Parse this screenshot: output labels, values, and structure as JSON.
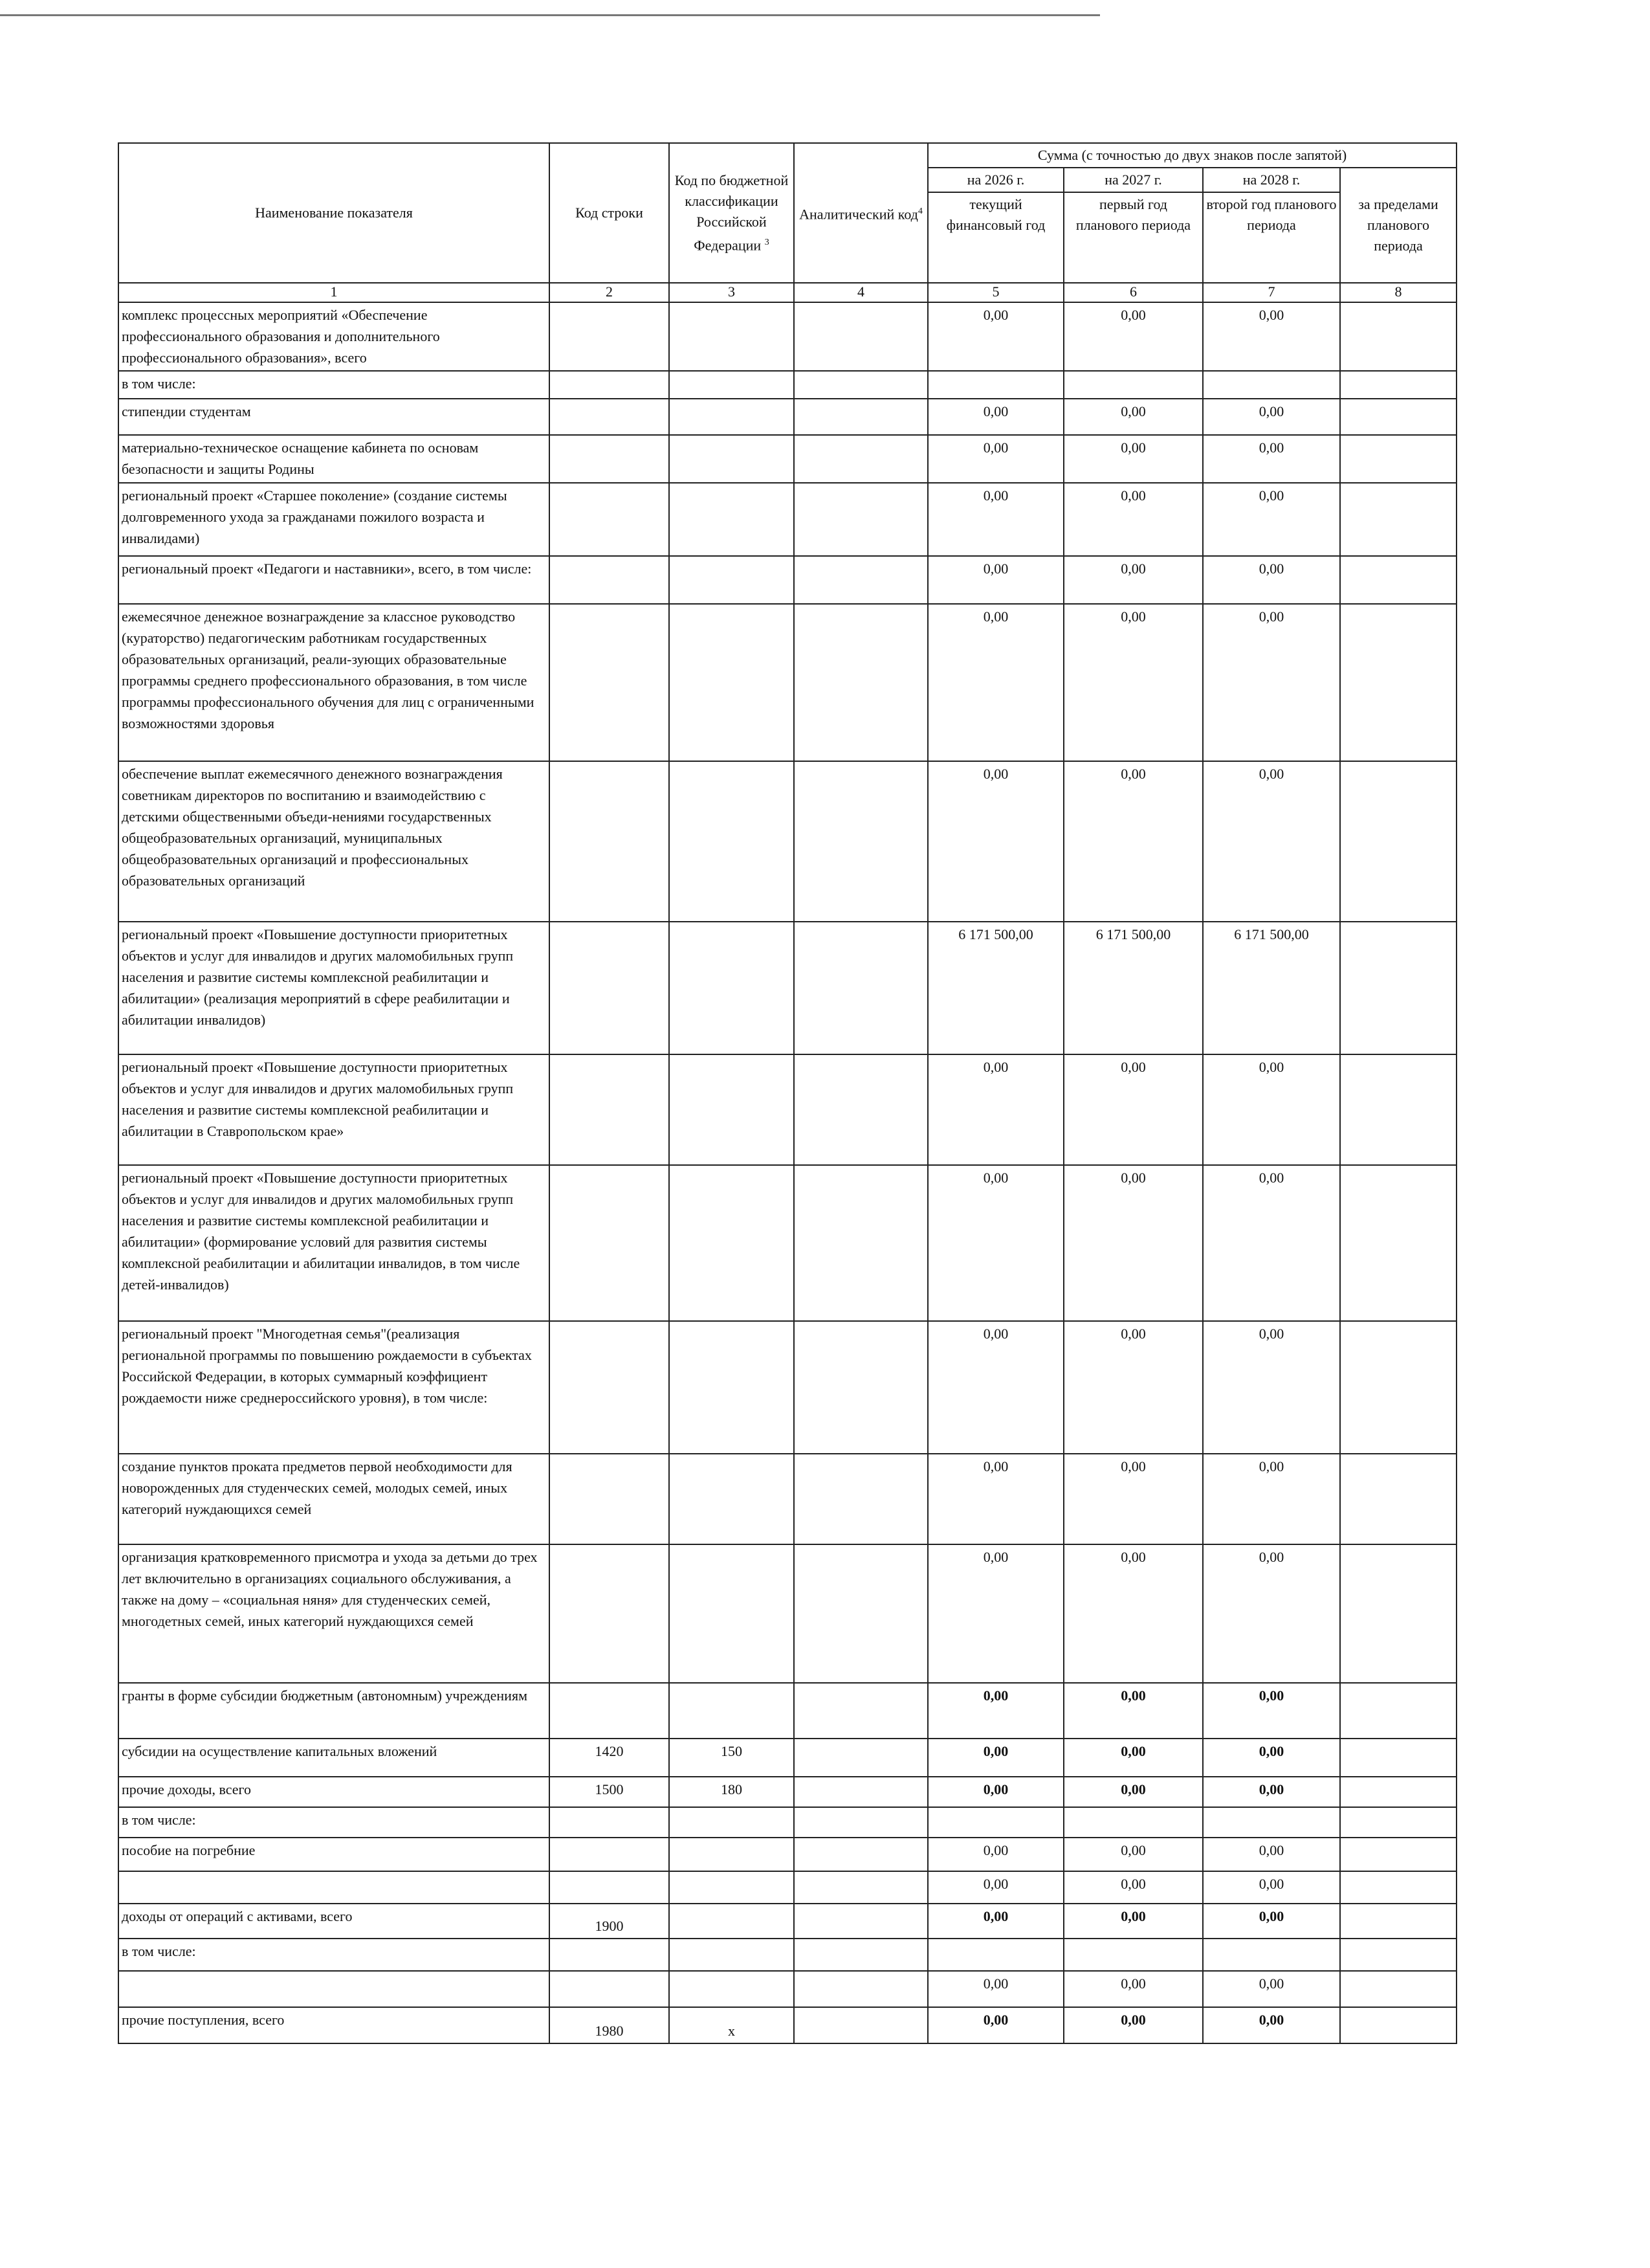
{
  "header": {
    "name": "Наименование показателя",
    "line_code": "Код строки",
    "budget_code": "Код по бюджетной классификации Российской Федерации",
    "budget_code_note": "3",
    "analytic": "Аналитический код",
    "analytic_note": "4",
    "sum": "Сумма (с точностью до двух знаков после запятой)",
    "y2026": "на 2026 г.",
    "y2027": "на 2027 г.",
    "y2028": "на 2028 г.",
    "current": "текущий финансовый год",
    "first": "первый год планового периода",
    "second": "второй год планового периода",
    "beyond": "за пределами планового периода"
  },
  "column_numbers": [
    "1",
    "2",
    "3",
    "4",
    "5",
    "6",
    "7",
    "8"
  ],
  "rows": [
    {
      "name": "комплекс процессных мероприятий «Обеспечение профессионального образования и дополнительного профессионального образования», всего",
      "line_code": "",
      "budget_code": "",
      "v": [
        "0,00",
        "0,00",
        "0,00"
      ],
      "bold": false
    },
    {
      "name": "в том числе:",
      "line_code": "",
      "budget_code": "",
      "v": [
        "",
        "",
        ""
      ],
      "bold": false
    },
    {
      "name": "стипендии студентам",
      "line_code": "",
      "budget_code": "",
      "v": [
        "0,00",
        "0,00",
        "0,00"
      ],
      "bold": false
    },
    {
      "name": "материально-техническое оснащение кабинета по основам безопасности и защиты Родины",
      "line_code": "",
      "budget_code": "",
      "v": [
        "0,00",
        "0,00",
        "0,00"
      ],
      "bold": false
    },
    {
      "name": "региональный проект «Старшее поколение» (создание системы долговременного ухода за гражданами пожилого возраста и инвалидами)",
      "line_code": "",
      "budget_code": "",
      "v": [
        "0,00",
        "0,00",
        "0,00"
      ],
      "bold": false
    },
    {
      "name": "региональный проект «Педагоги и наставники», всего, в том числе:",
      "line_code": "",
      "budget_code": "",
      "v": [
        "0,00",
        "0,00",
        "0,00"
      ],
      "bold": false
    },
    {
      "name": "ежемесячное денежное вознаграждение за классное руководство (кураторство) педагогическим работникам государственных образовательных организаций, реали-зующих образовательные программы среднего профессионального образования, в том числе программы профессионального обучения для лиц с ограниченными возможностями здоровья",
      "line_code": "",
      "budget_code": "",
      "v": [
        "0,00",
        "0,00",
        "0,00"
      ],
      "bold": false
    },
    {
      "name": "обеспечение выплат ежемесячного денежного вознаграждения советникам директоров по воспитанию и взаимодействию с детскими общественными объеди-нениями государственных общеобразовательных организаций, муниципальных общеобразовательных организаций и профессиональных образовательных организаций",
      "line_code": "",
      "budget_code": "",
      "v": [
        "0,00",
        "0,00",
        "0,00"
      ],
      "bold": false
    },
    {
      "name": "региональный проект «Повышение доступности приоритетных объектов и услуг для инвалидов и других маломобильных групп населения и развитие системы комплексной реабилитации и абилитации» (реализация мероприятий в сфере реабилитации и абилитации инвалидов)",
      "line_code": "",
      "budget_code": "",
      "v": [
        "6 171 500,00",
        "6 171 500,00",
        "6 171 500,00"
      ],
      "bold": false
    },
    {
      "name": "региональный проект «Повышение доступности приоритетных объектов и услуг для инвалидов и других маломобильных групп населения и развитие системы комплексной реабилитации и абилитации в Ставропольском крае»",
      "line_code": "",
      "budget_code": "",
      "v": [
        "0,00",
        "0,00",
        "0,00"
      ],
      "bold": false
    },
    {
      "name": "региональный проект «Повышение доступности приоритетных объектов и услуг для инвалидов и других маломобильных групп населения и развитие системы комплексной реабилитации и абилитации» (формирование условий для развития системы комплексной реабилитации и абилитации инвалидов, в том числе детей-инвалидов)",
      "line_code": "",
      "budget_code": "",
      "v": [
        "0,00",
        "0,00",
        "0,00"
      ],
      "bold": false
    },
    {
      "name": "региональный проект \"Многодетная семья\"(реализация региональной программы по повышению рождаемости в субъектах Российской Федерации, в которых суммарный коэффициент рождаемости ниже среднероссийского уровня), в том числе:",
      "line_code": "",
      "budget_code": "",
      "v": [
        "0,00",
        "0,00",
        "0,00"
      ],
      "bold": false
    },
    {
      "name": "создание пунктов проката предметов первой необходимости для новорожденных для студенческих семей, молодых семей, иных категорий нуждающихся семей",
      "line_code": "",
      "budget_code": "",
      "v": [
        "0,00",
        "0,00",
        "0,00"
      ],
      "bold": false
    },
    {
      "name": "организация кратковременного присмотра и ухода за детьми до трех лет включительно в организациях социального обслуживания, а также на дому – «социальная няня» для студенческих семей, многодетных семей, иных категорий нуждающихся семей",
      "line_code": "",
      "budget_code": "",
      "v": [
        "0,00",
        "0,00",
        "0,00"
      ],
      "bold": false
    },
    {
      "name": "гранты в форме субсидии бюджетным (автономным) учреждениям",
      "line_code": "",
      "budget_code": "",
      "v": [
        "0,00",
        "0,00",
        "0,00"
      ],
      "bold": true
    },
    {
      "name": "субсидии на осуществление капитальных вложений",
      "line_code": "1420",
      "budget_code": "150",
      "v": [
        "0,00",
        "0,00",
        "0,00"
      ],
      "bold": true
    },
    {
      "name": "прочие доходы, всего",
      "line_code": "1500",
      "budget_code": "180",
      "v": [
        "0,00",
        "0,00",
        "0,00"
      ],
      "bold": true
    },
    {
      "name": "в том числе:",
      "line_code": "",
      "budget_code": "",
      "v": [
        "",
        "",
        ""
      ],
      "bold": false
    },
    {
      "name": "пособие на погребние",
      "line_code": "",
      "budget_code": "",
      "v": [
        "0,00",
        "0,00",
        "0,00"
      ],
      "bold": false
    },
    {
      "name": "",
      "line_code": "",
      "budget_code": "",
      "v": [
        "0,00",
        "0,00",
        "0,00"
      ],
      "bold": false
    },
    {
      "name": "доходы от операций с активами, всего",
      "line_code": "1900",
      "budget_code": "",
      "v": [
        "0,00",
        "0,00",
        "0,00"
      ],
      "bold": true,
      "code_bottom": true
    },
    {
      "name": "в том числе:",
      "line_code": "",
      "budget_code": "",
      "v": [
        "",
        "",
        ""
      ],
      "bold": false
    },
    {
      "name": "",
      "line_code": "",
      "budget_code": "",
      "v": [
        "0,00",
        "0,00",
        "0,00"
      ],
      "bold": false
    },
    {
      "name": "прочие поступления, всего",
      "line_code": "1980",
      "budget_code": "x",
      "v": [
        "0,00",
        "0,00",
        "0,00"
      ],
      "bold": true,
      "code_bottom": true
    }
  ]
}
